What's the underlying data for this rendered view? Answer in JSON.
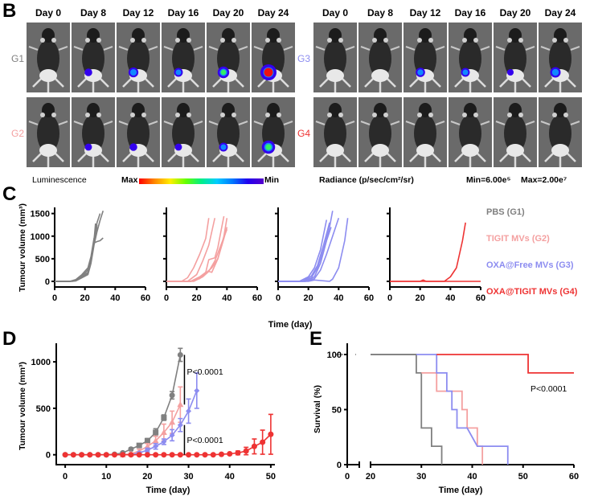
{
  "panel_b": {
    "letter": "B",
    "days": [
      "Day 0",
      "Day 8",
      "Day 12",
      "Day 16",
      "Day 20",
      "Day 24"
    ],
    "groups": [
      {
        "label": "G1",
        "color": "#808080",
        "signals": [
          0,
          0.25,
          0.45,
          0.35,
          0.6,
          1.0
        ]
      },
      {
        "label": "G2",
        "color": "#f4a0a0",
        "signals": [
          0,
          0.2,
          0.25,
          0.2,
          0.35,
          0.75
        ]
      },
      {
        "label": "G3",
        "color": "#8c8cf0",
        "signals": [
          0,
          0,
          0.4,
          0.35,
          0.15,
          0.5
        ]
      },
      {
        "label": "G4",
        "color": "#ee3333",
        "signals": [
          0,
          0,
          0,
          0,
          0,
          0
        ]
      }
    ],
    "luminescence_label": "Luminescence",
    "max_label": "Max",
    "min_label": "Min",
    "radiance_label": "Radiance (p/sec/cm²/sr)",
    "range_min": "Min=6.00e⁵",
    "range_max": "Max=2.00e⁷"
  },
  "panel_c": {
    "letter": "C"
  },
  "panel_d": {
    "letter": "D"
  },
  "panel_e": {
    "letter": "E"
  },
  "chart_data": [
    {
      "id": "C",
      "type": "line",
      "title": "",
      "xlabel": "Time (day)",
      "ylabel": "Tumour volume (mm³)",
      "xlim": [
        0,
        60
      ],
      "ylim": [
        0,
        1600
      ],
      "xticks": [
        0,
        20,
        40,
        60
      ],
      "yticks": [
        0,
        500,
        1000,
        1500
      ],
      "legend": [
        "PBS (G1)",
        "TIGIT MVs (G2)",
        "OXA@Free MVs (G3)",
        "OXA@TIGIT MVs (G4)"
      ],
      "legend_colors": [
        "#808080",
        "#f4a0a0",
        "#8c8cf0",
        "#ee3333"
      ],
      "legend_placement": "right",
      "subplots": [
        {
          "name": "PBS (G1)",
          "color": "#808080",
          "series": [
            {
              "x": [
                0,
                10,
                14,
                18,
                22,
                24,
                26,
                28,
                30
              ],
              "y": [
                0,
                0,
                30,
                100,
                180,
                450,
                900,
                1300,
                1500
              ]
            },
            {
              "x": [
                0,
                10,
                14,
                18,
                22,
                24,
                26,
                27
              ],
              "y": [
                0,
                0,
                20,
                120,
                250,
                500,
                900,
                1280
              ]
            },
            {
              "x": [
                0,
                10,
                14,
                18,
                22,
                24,
                26,
                28,
                30,
                32
              ],
              "y": [
                0,
                0,
                10,
                80,
                150,
                400,
                800,
                1100,
                1350,
                1560
              ]
            },
            {
              "x": [
                0,
                10,
                14,
                18,
                22,
                24,
                26,
                28,
                30,
                32
              ],
              "y": [
                0,
                0,
                15,
                90,
                200,
                480,
                850,
                880,
                900,
                960
              ]
            },
            {
              "x": [
                0,
                10,
                14,
                18,
                22,
                24,
                26,
                28
              ],
              "y": [
                0,
                0,
                40,
                150,
                300,
                550,
                950,
                1200
              ]
            },
            {
              "x": [
                0,
                12,
                16,
                20,
                22,
                24,
                26,
                28
              ],
              "y": [
                0,
                0,
                50,
                180,
                260,
                520,
                880,
                1250
              ]
            }
          ]
        },
        {
          "name": "TIGIT MVs (G2)",
          "color": "#f4a0a0",
          "series": [
            {
              "x": [
                0,
                10,
                14,
                18,
                22,
                26,
                28
              ],
              "y": [
                0,
                0,
                80,
                300,
                600,
                950,
                1400
              ]
            },
            {
              "x": [
                0,
                14,
                20,
                24,
                28,
                30,
                32
              ],
              "y": [
                0,
                0,
                150,
                450,
                800,
                1100,
                1400
              ]
            },
            {
              "x": [
                0,
                16,
                22,
                26,
                28,
                30,
                32,
                34,
                36,
                38
              ],
              "y": [
                0,
                0,
                100,
                200,
                480,
                500,
                520,
                750,
                1100,
                1440
              ]
            },
            {
              "x": [
                0,
                16,
                22,
                26,
                28,
                30,
                34,
                38,
                40
              ],
              "y": [
                0,
                0,
                80,
                200,
                220,
                200,
                500,
                1000,
                1400
              ]
            },
            {
              "x": [
                0,
                16,
                22,
                26,
                30,
                34,
                38,
                40
              ],
              "y": [
                0,
                0,
                60,
                180,
                300,
                500,
                950,
                1200
              ]
            },
            {
              "x": [
                0,
                18,
                24,
                28,
                32,
                36,
                40
              ],
              "y": [
                0,
                0,
                100,
                220,
                450,
                800,
                1150
              ]
            }
          ]
        },
        {
          "name": "OXA@Free MVs (G3)",
          "color": "#8c8cf0",
          "series": [
            {
              "x": [
                0,
                14,
                20,
                24,
                28,
                32
              ],
              "y": [
                0,
                0,
                100,
                300,
                700,
                1360
              ]
            },
            {
              "x": [
                0,
                16,
                22,
                26,
                30,
                34
              ],
              "y": [
                0,
                0,
                120,
                350,
                800,
                1300
              ]
            },
            {
              "x": [
                0,
                16,
                22,
                26,
                30,
                34,
                36
              ],
              "y": [
                0,
                0,
                80,
                300,
                700,
                1200,
                1560
              ]
            },
            {
              "x": [
                0,
                18,
                24,
                28,
                32,
                35
              ],
              "y": [
                0,
                0,
                100,
                400,
                900,
                1200
              ]
            },
            {
              "x": [
                0,
                18,
                24,
                28,
                32,
                36,
                40
              ],
              "y": [
                0,
                0,
                60,
                250,
                600,
                1000,
                1400
              ]
            },
            {
              "x": [
                0,
                20,
                24,
                34,
                36,
                40,
                44,
                46
              ],
              "y": [
                0,
                0,
                30,
                0,
                50,
                300,
                900,
                1400
              ]
            }
          ]
        },
        {
          "name": "OXA@TIGIT MVs (G4)",
          "color": "#ee3333",
          "series": [
            {
              "x": [
                0,
                20,
                22,
                24,
                36,
                40,
                44,
                46,
                48,
                50
              ],
              "y": [
                0,
                0,
                30,
                0,
                0,
                100,
                300,
                600,
                900,
                1300
              ]
            },
            {
              "x": [
                0,
                60
              ],
              "y": [
                0,
                0
              ]
            }
          ]
        }
      ]
    },
    {
      "id": "D",
      "type": "line",
      "title": "",
      "xlabel": "Time (day)",
      "ylabel": "Tumour volume (mm³)",
      "xlim": [
        -1,
        51
      ],
      "ylim": [
        -20,
        1200
      ],
      "xticks": [
        0,
        10,
        20,
        30,
        40,
        50
      ],
      "yticks": [
        0,
        500,
        1000
      ],
      "annotations": [
        "P<0.0001",
        "P<0.0001"
      ],
      "series": [
        {
          "name": "PBS (G1)",
          "color": "#808080",
          "marker": "circle-square",
          "x": [
            0,
            2,
            4,
            6,
            8,
            10,
            12,
            14,
            16,
            18,
            20,
            22,
            24,
            26,
            28
          ],
          "y": [
            0,
            0,
            0,
            0,
            0,
            0,
            5,
            20,
            60,
            100,
            150,
            240,
            400,
            640,
            1075
          ],
          "err": [
            0,
            0,
            0,
            0,
            0,
            0,
            5,
            10,
            15,
            20,
            25,
            40,
            30,
            40,
            70
          ]
        },
        {
          "name": "TIGIT MVs (G2)",
          "color": "#f4a0a0",
          "marker": "triangle",
          "x": [
            14,
            16,
            18,
            20,
            22,
            24,
            26,
            28
          ],
          "y": [
            0,
            10,
            40,
            90,
            150,
            240,
            350,
            540
          ],
          "err": [
            0,
            10,
            20,
            30,
            50,
            90,
            120,
            190
          ]
        },
        {
          "name": "OXA@Free MVs (G3)",
          "color": "#8c8cf0",
          "marker": "diamond",
          "x": [
            14,
            16,
            18,
            20,
            22,
            24,
            26,
            28,
            30,
            32
          ],
          "y": [
            0,
            0,
            20,
            50,
            90,
            140,
            210,
            320,
            470,
            690
          ],
          "err": [
            0,
            5,
            10,
            20,
            30,
            30,
            60,
            70,
            130,
            190
          ]
        },
        {
          "name": "OXA@TIGIT MVs (G4)",
          "color": "#ee3333",
          "marker": "circle",
          "x": [
            0,
            2,
            4,
            6,
            8,
            10,
            12,
            14,
            16,
            18,
            20,
            22,
            24,
            26,
            28,
            30,
            32,
            34,
            36,
            38,
            40,
            42,
            44,
            46,
            48,
            50
          ],
          "y": [
            0,
            0,
            0,
            0,
            0,
            0,
            0,
            0,
            0,
            0,
            0,
            0,
            0,
            0,
            0,
            0,
            0,
            0,
            0,
            5,
            10,
            20,
            40,
            90,
            135,
            220
          ],
          "err": [
            0,
            0,
            0,
            0,
            0,
            0,
            0,
            0,
            0,
            0,
            0,
            0,
            0,
            0,
            0,
            0,
            0,
            0,
            0,
            5,
            10,
            20,
            40,
            80,
            130,
            215
          ]
        }
      ]
    },
    {
      "id": "E",
      "type": "line",
      "title": "",
      "xlabel": "Time (day)",
      "ylabel": "Survival (%)",
      "xlim": [
        0,
        60
      ],
      "ylim": [
        0,
        100
      ],
      "xticks": [
        0,
        20,
        30,
        40,
        50,
        60
      ],
      "yticks": [
        0,
        50,
        100
      ],
      "axis_break": [
        4,
        19
      ],
      "annotations": [
        "P<0.0001"
      ],
      "series": [
        {
          "name": "PBS (G1)",
          "color": "#808080",
          "x": [
            0,
            29,
            29,
            30,
            30,
            32,
            32,
            34,
            34
          ],
          "y": [
            100,
            100,
            83.3,
            83.3,
            33.3,
            33.3,
            16.7,
            16.7,
            0
          ]
        },
        {
          "name": "TIGIT MVs (G2)",
          "color": "#f4a0a0",
          "x": [
            30,
            33,
            33,
            38,
            38,
            39,
            39,
            41,
            41,
            42,
            42
          ],
          "y": [
            83.3,
            83.3,
            66.7,
            66.7,
            50,
            50,
            33.3,
            33.3,
            16.7,
            16.7,
            0
          ]
        },
        {
          "name": "OXA@Free MVs (G3)",
          "color": "#8c8cf0",
          "x": [
            29,
            33,
            33,
            35,
            35,
            36,
            36,
            37,
            37,
            39,
            41,
            47,
            47
          ],
          "y": [
            100,
            100,
            83.3,
            83.3,
            66.7,
            66.7,
            50,
            50,
            33.3,
            33.3,
            16.7,
            16.7,
            0
          ]
        },
        {
          "name": "OXA@TIGIT MVs (G4)",
          "color": "#ee3333",
          "x": [
            33,
            51,
            51,
            60
          ],
          "y": [
            100,
            100,
            83.3,
            83.3
          ]
        }
      ]
    }
  ]
}
